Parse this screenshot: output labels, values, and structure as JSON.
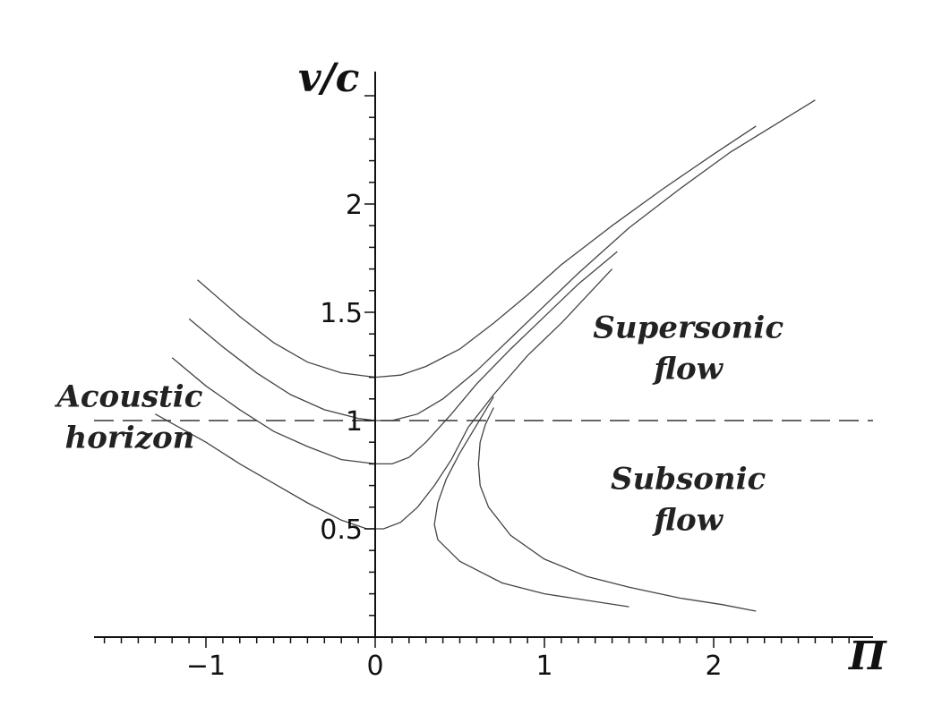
{
  "chart_data": {
    "type": "line",
    "xlabel": "Π",
    "ylabel": "v/c",
    "xlim": [
      -1.65,
      2.9
    ],
    "ylim": [
      0,
      2.5
    ],
    "x_ticks": [
      {
        "value": -1,
        "label": "−1"
      },
      {
        "value": 0,
        "label": "0"
      },
      {
        "value": 1,
        "label": "1"
      },
      {
        "value": 2,
        "label": "2"
      }
    ],
    "y_ticks": [
      {
        "value": 0.5,
        "label": "0.5"
      },
      {
        "value": 1,
        "label": "1"
      },
      {
        "value": 1.5,
        "label": "1.5"
      },
      {
        "value": 2,
        "label": "2"
      }
    ],
    "grid": false,
    "horizon": {
      "y": 1,
      "style": "dashed"
    },
    "annotations": [
      {
        "lines": [
          "Acoustic",
          "horizon"
        ],
        "x": -1.45,
        "y": 1.03
      },
      {
        "lines": [
          "Supersonic",
          "flow"
        ],
        "x": 1.85,
        "y": 1.35
      },
      {
        "lines": [
          "Subsonic",
          "flow"
        ],
        "x": 1.85,
        "y": 0.65
      }
    ],
    "series": [
      {
        "points": [
          [
            -1.05,
            1.65
          ],
          [
            -0.8,
            1.48
          ],
          [
            -0.6,
            1.36
          ],
          [
            -0.4,
            1.27
          ],
          [
            -0.2,
            1.22
          ],
          [
            0,
            1.2
          ],
          [
            0.15,
            1.21
          ],
          [
            0.3,
            1.25
          ],
          [
            0.5,
            1.33
          ],
          [
            0.7,
            1.45
          ],
          [
            0.9,
            1.58
          ],
          [
            1.1,
            1.72
          ],
          [
            1.4,
            1.9
          ],
          [
            1.7,
            2.07
          ],
          [
            2.0,
            2.23
          ],
          [
            2.25,
            2.36
          ]
        ]
      },
      {
        "points": [
          [
            -1.1,
            1.47
          ],
          [
            -0.9,
            1.34
          ],
          [
            -0.7,
            1.22
          ],
          [
            -0.5,
            1.12
          ],
          [
            -0.3,
            1.05
          ],
          [
            -0.1,
            1.01
          ],
          [
            0,
            1.0
          ],
          [
            0.1,
            1.0
          ],
          [
            0.25,
            1.03
          ],
          [
            0.4,
            1.1
          ],
          [
            0.6,
            1.23
          ],
          [
            0.8,
            1.38
          ],
          [
            1.0,
            1.53
          ],
          [
            1.2,
            1.68
          ],
          [
            1.5,
            1.89
          ],
          [
            1.8,
            2.07
          ],
          [
            2.1,
            2.24
          ],
          [
            2.6,
            2.48
          ]
        ]
      },
      {
        "points": [
          [
            -1.2,
            1.29
          ],
          [
            -1.0,
            1.16
          ],
          [
            -0.8,
            1.05
          ],
          [
            -0.6,
            0.95
          ],
          [
            -0.4,
            0.88
          ],
          [
            -0.2,
            0.82
          ],
          [
            0,
            0.8
          ],
          [
            0.1,
            0.8
          ],
          [
            0.2,
            0.83
          ],
          [
            0.3,
            0.9
          ],
          [
            0.45,
            1.03
          ],
          [
            0.6,
            1.17
          ],
          [
            0.8,
            1.33
          ],
          [
            1.0,
            1.48
          ],
          [
            1.2,
            1.63
          ],
          [
            1.43,
            1.78
          ]
        ]
      },
      {
        "points": [
          [
            -1.3,
            1.03
          ],
          [
            -1.0,
            0.9
          ],
          [
            -0.8,
            0.8
          ],
          [
            -0.6,
            0.71
          ],
          [
            -0.4,
            0.62
          ],
          [
            -0.2,
            0.54
          ],
          [
            -0.05,
            0.5
          ],
          [
            0.05,
            0.5
          ],
          [
            0.15,
            0.53
          ],
          [
            0.25,
            0.6
          ],
          [
            0.35,
            0.7
          ],
          [
            0.45,
            0.82
          ],
          [
            0.55,
            0.97
          ],
          [
            0.7,
            1.12
          ],
          [
            0.9,
            1.3
          ],
          [
            1.1,
            1.45
          ],
          [
            1.4,
            1.7
          ]
        ]
      },
      {
        "points": [
          [
            0.7,
            1.11
          ],
          [
            0.6,
            0.98
          ],
          [
            0.5,
            0.85
          ],
          [
            0.42,
            0.73
          ],
          [
            0.37,
            0.62
          ],
          [
            0.35,
            0.52
          ],
          [
            0.37,
            0.45
          ],
          [
            0.5,
            0.35
          ],
          [
            0.75,
            0.25
          ],
          [
            1.0,
            0.2
          ],
          [
            1.25,
            0.17
          ],
          [
            1.5,
            0.14
          ]
        ]
      },
      {
        "points": [
          [
            0.7,
            1.06
          ],
          [
            0.65,
            0.98
          ],
          [
            0.62,
            0.9
          ],
          [
            0.61,
            0.8
          ],
          [
            0.62,
            0.7
          ],
          [
            0.67,
            0.6
          ],
          [
            0.8,
            0.47
          ],
          [
            1.0,
            0.36
          ],
          [
            1.25,
            0.28
          ],
          [
            1.5,
            0.23
          ],
          [
            1.8,
            0.18
          ],
          [
            2.05,
            0.15
          ],
          [
            2.25,
            0.12
          ]
        ]
      }
    ]
  }
}
